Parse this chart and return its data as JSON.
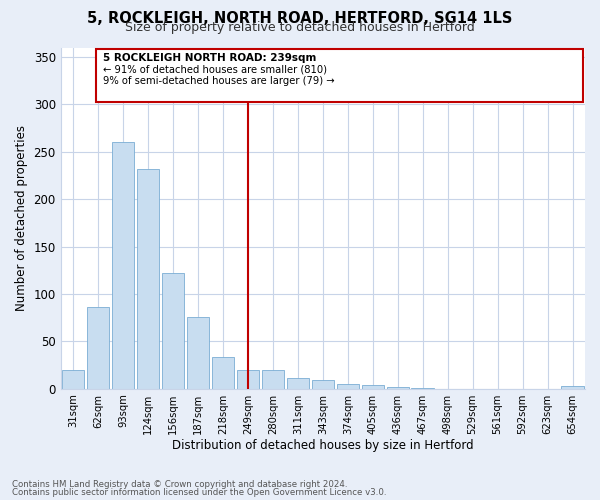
{
  "title": "5, ROCKLEIGH, NORTH ROAD, HERTFORD, SG14 1LS",
  "subtitle": "Size of property relative to detached houses in Hertford",
  "xlabel": "Distribution of detached houses by size in Hertford",
  "ylabel": "Number of detached properties",
  "categories": [
    "31sqm",
    "62sqm",
    "93sqm",
    "124sqm",
    "156sqm",
    "187sqm",
    "218sqm",
    "249sqm",
    "280sqm",
    "311sqm",
    "343sqm",
    "374sqm",
    "405sqm",
    "436sqm",
    "467sqm",
    "498sqm",
    "529sqm",
    "561sqm",
    "592sqm",
    "623sqm",
    "654sqm"
  ],
  "values": [
    20,
    86,
    260,
    232,
    122,
    76,
    33,
    20,
    20,
    11,
    9,
    5,
    4,
    2,
    1,
    0,
    0,
    0,
    0,
    0,
    3
  ],
  "bar_color": "#c8ddf0",
  "bar_edge_color": "#7aadd4",
  "highlight_index": 7,
  "highlight_color": "#c00000",
  "vline_x": 7,
  "annotation_title": "5 ROCKLEIGH NORTH ROAD: 239sqm",
  "annotation_line1": "← 91% of detached houses are smaller (810)",
  "annotation_line2": "9% of semi-detached houses are larger (79) →",
  "ylim": [
    0,
    360
  ],
  "yticks": [
    0,
    50,
    100,
    150,
    200,
    250,
    300,
    350
  ],
  "footer_line1": "Contains HM Land Registry data © Crown copyright and database right 2024.",
  "footer_line2": "Contains public sector information licensed under the Open Government Licence v3.0.",
  "bg_color": "#e8eef8",
  "plot_bg_color": "#ffffff",
  "grid_color": "#c8d4e8"
}
